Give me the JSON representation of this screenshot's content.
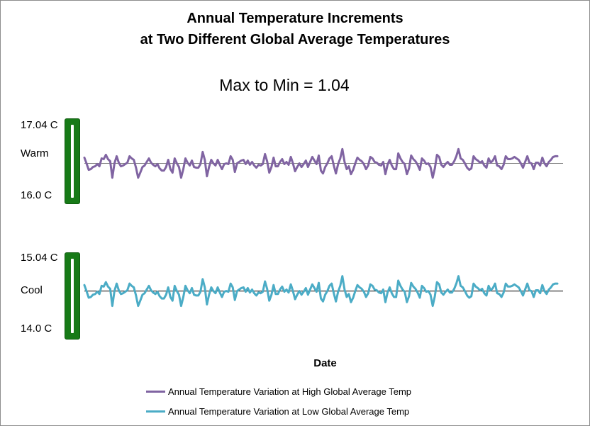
{
  "chart_data": {
    "type": "line",
    "title_line1": "Annual Temperature Increments",
    "title_line2": "at Two Different Global Average Temperatures",
    "subtitle": "Max to Min = 1.04",
    "xlabel": "Date",
    "panels": [
      {
        "name": "Warm",
        "label": "Warm",
        "max_label": "17.04 C",
        "min_label": "16.0 C",
        "ylim": [
          16.0,
          17.04
        ],
        "baseline": 16.5
      },
      {
        "name": "Cool",
        "label": "Cool",
        "max_label": "15.04 C",
        "min_label": "14.0 C",
        "ylim": [
          14.0,
          15.04
        ],
        "baseline": 14.5
      }
    ],
    "series": [
      {
        "name": "Annual Temperature Variation at High Global Average Temp",
        "color": "#8064a2",
        "panel": 0,
        "values": [
          16.58,
          16.5,
          16.41,
          16.42,
          16.45,
          16.46,
          16.49,
          16.46,
          16.57,
          16.56,
          16.62,
          16.56,
          16.53,
          16.3,
          16.5,
          16.6,
          16.51,
          16.46,
          16.47,
          16.49,
          16.51,
          16.6,
          16.57,
          16.55,
          16.44,
          16.3,
          16.37,
          16.45,
          16.47,
          16.52,
          16.57,
          16.51,
          16.48,
          16.46,
          16.49,
          16.43,
          16.4,
          16.4,
          16.45,
          16.55,
          16.42,
          16.37,
          16.57,
          16.5,
          16.45,
          16.3,
          16.42,
          16.57,
          16.51,
          16.47,
          16.54,
          16.45,
          16.44,
          16.44,
          16.49,
          16.66,
          16.55,
          16.32,
          16.45,
          16.55,
          16.5,
          16.47,
          16.55,
          16.48,
          16.42,
          16.49,
          16.5,
          16.49,
          16.6,
          16.55,
          16.38,
          16.5,
          16.52,
          16.54,
          16.55,
          16.49,
          16.54,
          16.48,
          16.52,
          16.47,
          16.44,
          16.48,
          16.47,
          16.49,
          16.63,
          16.53,
          16.37,
          16.45,
          16.58,
          16.46,
          16.46,
          16.52,
          16.56,
          16.49,
          16.52,
          16.48,
          16.59,
          16.5,
          16.39,
          16.45,
          16.5,
          16.45,
          16.49,
          16.54,
          16.45,
          16.52,
          16.59,
          16.54,
          16.49,
          16.61,
          16.4,
          16.36,
          16.45,
          16.5,
          16.57,
          16.6,
          16.47,
          16.36,
          16.49,
          16.57,
          16.7,
          16.52,
          16.42,
          16.46,
          16.35,
          16.41,
          16.5,
          16.58,
          16.55,
          16.53,
          16.49,
          16.42,
          16.47,
          16.59,
          16.57,
          16.52,
          16.51,
          16.48,
          16.47,
          16.52,
          16.35,
          16.48,
          16.55,
          16.47,
          16.42,
          16.42,
          16.64,
          16.57,
          16.52,
          16.49,
          16.35,
          16.43,
          16.61,
          16.56,
          16.53,
          16.48,
          16.41,
          16.57,
          16.54,
          16.49,
          16.5,
          16.45,
          16.3,
          16.43,
          16.62,
          16.59,
          16.48,
          16.45,
          16.49,
          16.52,
          16.48,
          16.48,
          16.53,
          16.6,
          16.7,
          16.57,
          16.55,
          16.5,
          16.44,
          16.41,
          16.43,
          16.6,
          16.56,
          16.54,
          16.51,
          16.53,
          16.47,
          16.44,
          16.57,
          16.51,
          16.54,
          16.6,
          16.47,
          16.46,
          16.42,
          16.48,
          16.6,
          16.56,
          16.56,
          16.57,
          16.59,
          16.57,
          16.55,
          16.5,
          16.44,
          16.52,
          16.6,
          16.51,
          16.5,
          16.42,
          16.51,
          16.51,
          16.47,
          16.58,
          16.5,
          16.46,
          16.52,
          16.55,
          16.59,
          16.6,
          16.6
        ]
      },
      {
        "name": "Annual Temperature Variation at Low Global Average Temp",
        "color": "#4bacc6",
        "panel": 1,
        "values": [
          14.58,
          14.5,
          14.41,
          14.42,
          14.45,
          14.46,
          14.49,
          14.46,
          14.57,
          14.56,
          14.62,
          14.56,
          14.53,
          14.3,
          14.5,
          14.6,
          14.51,
          14.46,
          14.47,
          14.49,
          14.51,
          14.6,
          14.57,
          14.55,
          14.44,
          14.3,
          14.37,
          14.45,
          14.47,
          14.52,
          14.57,
          14.51,
          14.48,
          14.46,
          14.49,
          14.43,
          14.4,
          14.4,
          14.45,
          14.55,
          14.42,
          14.37,
          14.57,
          14.5,
          14.45,
          14.3,
          14.42,
          14.57,
          14.51,
          14.47,
          14.54,
          14.45,
          14.44,
          14.44,
          14.49,
          14.66,
          14.55,
          14.32,
          14.45,
          14.55,
          14.5,
          14.47,
          14.55,
          14.48,
          14.42,
          14.49,
          14.5,
          14.49,
          14.6,
          14.55,
          14.38,
          14.5,
          14.52,
          14.54,
          14.55,
          14.49,
          14.54,
          14.48,
          14.52,
          14.47,
          14.44,
          14.48,
          14.47,
          14.49,
          14.63,
          14.53,
          14.37,
          14.45,
          14.58,
          14.46,
          14.46,
          14.52,
          14.56,
          14.49,
          14.52,
          14.48,
          14.59,
          14.5,
          14.39,
          14.45,
          14.5,
          14.45,
          14.49,
          14.54,
          14.45,
          14.52,
          14.59,
          14.54,
          14.49,
          14.61,
          14.4,
          14.36,
          14.45,
          14.5,
          14.57,
          14.6,
          14.47,
          14.36,
          14.49,
          14.57,
          14.7,
          14.52,
          14.42,
          14.46,
          14.35,
          14.41,
          14.5,
          14.58,
          14.55,
          14.53,
          14.49,
          14.42,
          14.47,
          14.59,
          14.57,
          14.52,
          14.51,
          14.48,
          14.47,
          14.52,
          14.35,
          14.48,
          14.55,
          14.47,
          14.42,
          14.42,
          14.64,
          14.57,
          14.52,
          14.49,
          14.35,
          14.43,
          14.61,
          14.56,
          14.53,
          14.48,
          14.41,
          14.57,
          14.54,
          14.49,
          14.5,
          14.45,
          14.3,
          14.43,
          14.62,
          14.59,
          14.48,
          14.45,
          14.49,
          14.52,
          14.48,
          14.48,
          14.53,
          14.6,
          14.7,
          14.57,
          14.55,
          14.5,
          14.44,
          14.41,
          14.43,
          14.6,
          14.56,
          14.54,
          14.51,
          14.53,
          14.47,
          14.44,
          14.57,
          14.51,
          14.54,
          14.6,
          14.47,
          14.46,
          14.42,
          14.48,
          14.6,
          14.56,
          14.56,
          14.57,
          14.59,
          14.57,
          14.55,
          14.5,
          14.44,
          14.52,
          14.6,
          14.51,
          14.5,
          14.42,
          14.51,
          14.51,
          14.47,
          14.58,
          14.5,
          14.46,
          14.52,
          14.55,
          14.59,
          14.6,
          14.6
        ]
      }
    ]
  }
}
